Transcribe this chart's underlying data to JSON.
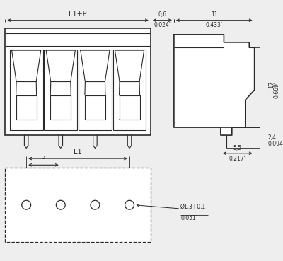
{
  "bg_color": "#eeeeee",
  "line_color": "#2a2a2a",
  "dim_color": "#2a2a2a",
  "figure_size": [
    4.0,
    3.69
  ],
  "dpi": 100,
  "dims": {
    "L1_plus_P_label": "L1+P",
    "L1_label": "L1",
    "P_label": "P",
    "dim_06": "0,6\n0.024´",
    "dim_11": "11\n0.433´",
    "dim_17": "17\n0.669´",
    "dim_24": "2,4\n0.094´",
    "dim_55": "5,5\n0.217´",
    "dim_phi": "Ø1,3+0,1\n0.051´"
  }
}
